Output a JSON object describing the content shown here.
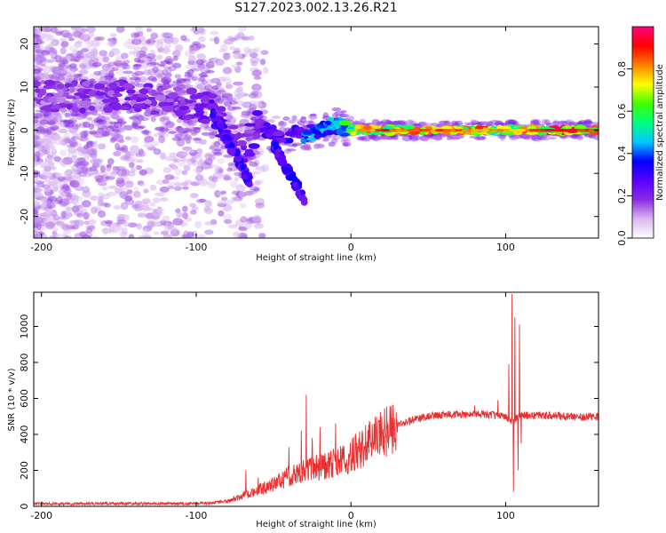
{
  "title": "S127.2023.002.13.26.R21",
  "chart_data": [
    {
      "type": "heatmap",
      "xlabel": "Height of straight line (km)",
      "ylabel": "Frequency (Hz)",
      "xlim": [
        -205,
        160
      ],
      "ylim": [
        -25,
        24
      ],
      "x_ticks": [
        -200,
        -100,
        0,
        100
      ],
      "y_ticks": [
        -20,
        -10,
        0,
        10,
        20
      ],
      "colorbar": {
        "label": "Normalized spectral amplitude",
        "range": [
          0.0,
          1.0
        ],
        "ticks": [
          0.0,
          0.2,
          0.4,
          0.6,
          0.8
        ],
        "colors": [
          "#ffffff",
          "#d9b8f0",
          "#8a2be2",
          "#5a00ff",
          "#0000ff",
          "#00c8ff",
          "#00ff80",
          "#40ff00",
          "#ffff00",
          "#ff8000",
          "#ff0000",
          "#ff007f"
        ]
      },
      "ridge": [
        {
          "x": -200,
          "y": 8,
          "amp": 0.2
        },
        {
          "x": -180,
          "y": 8,
          "amp": 0.22
        },
        {
          "x": -160,
          "y": 8,
          "amp": 0.25
        },
        {
          "x": -140,
          "y": 8,
          "amp": 0.24
        },
        {
          "x": -120,
          "y": 7,
          "amp": 0.22
        },
        {
          "x": -100,
          "y": 6,
          "amp": 0.26
        },
        {
          "x": -90,
          "y": 5,
          "amp": 0.3
        },
        {
          "x": -80,
          "y": 0,
          "amp": 0.3
        },
        {
          "x": -70,
          "y": -5,
          "amp": 0.25
        },
        {
          "x": -60,
          "y": 1,
          "amp": 0.3
        },
        {
          "x": -50,
          "y": -1,
          "amp": 0.35
        },
        {
          "x": -40,
          "y": -1,
          "amp": 0.35
        },
        {
          "x": -30,
          "y": -1,
          "amp": 0.45
        },
        {
          "x": -20,
          "y": 0,
          "amp": 0.5
        },
        {
          "x": -10,
          "y": 1,
          "amp": 0.55
        },
        {
          "x": 0,
          "y": 0,
          "amp": 0.7
        },
        {
          "x": 10,
          "y": 0,
          "amp": 0.9
        },
        {
          "x": 30,
          "y": 0,
          "amp": 0.92
        },
        {
          "x": 50,
          "y": 0,
          "amp": 0.88
        },
        {
          "x": 70,
          "y": 0,
          "amp": 0.9
        },
        {
          "x": 90,
          "y": 0,
          "amp": 0.9
        },
        {
          "x": 100,
          "y": 0,
          "amp": 0.8
        },
        {
          "x": 120,
          "y": 0,
          "amp": 0.95
        },
        {
          "x": 140,
          "y": 0,
          "amp": 0.97
        },
        {
          "x": 160,
          "y": 0,
          "amp": 0.97
        }
      ],
      "branches": [
        {
          "x": [
            -90,
            -80,
            -70,
            -65
          ],
          "y": [
            5,
            -2,
            -9,
            -12
          ]
        },
        {
          "x": [
            -50,
            -40,
            -30
          ],
          "y": [
            -3,
            -10,
            -16
          ]
        }
      ]
    },
    {
      "type": "line",
      "xlabel": "Height of straight line (km)",
      "ylabel": "SNR (10 * v/v)",
      "xlim": [
        -205,
        160
      ],
      "ylim": [
        0,
        1190
      ],
      "x_ticks": [
        -200,
        -100,
        0,
        100
      ],
      "y_ticks": [
        0,
        200,
        400,
        600,
        800,
        1000
      ],
      "color": "#e83030",
      "envelope": {
        "x": [
          -205,
          -100,
          -90,
          -80,
          -70,
          -60,
          -50,
          -40,
          -30,
          -20,
          -10,
          0,
          10,
          20,
          30,
          40,
          50,
          60,
          70,
          80,
          90,
          95,
          100,
          103,
          105,
          107,
          110,
          120,
          130,
          140,
          150,
          160
        ],
        "y": [
          15,
          15,
          20,
          30,
          60,
          90,
          120,
          170,
          200,
          220,
          240,
          280,
          340,
          400,
          450,
          480,
          500,
          510,
          510,
          510,
          510,
          505,
          500,
          480,
          470,
          490,
          505,
          505,
          505,
          500,
          500,
          500
        ]
      },
      "spikes": [
        {
          "x": -68,
          "y": 200
        },
        {
          "x": -60,
          "y": 160
        },
        {
          "x": -40,
          "y": 330
        },
        {
          "x": -32,
          "y": 420
        },
        {
          "x": -29,
          "y": 620
        },
        {
          "x": -25,
          "y": 380
        },
        {
          "x": -20,
          "y": 440
        },
        {
          "x": -10,
          "y": 460
        },
        {
          "x": 5,
          "y": 380
        },
        {
          "x": 15,
          "y": 460
        },
        {
          "x": 20,
          "y": 500
        },
        {
          "x": 80,
          "y": 560
        },
        {
          "x": 95,
          "y": 590
        },
        {
          "x": 102,
          "y": 790
        },
        {
          "x": 104,
          "y": 1180
        },
        {
          "x": 105,
          "y": 80
        },
        {
          "x": 106,
          "y": 1050
        },
        {
          "x": 108,
          "y": 200
        },
        {
          "x": 109,
          "y": 1010
        },
        {
          "x": 110,
          "y": 350
        }
      ]
    }
  ]
}
